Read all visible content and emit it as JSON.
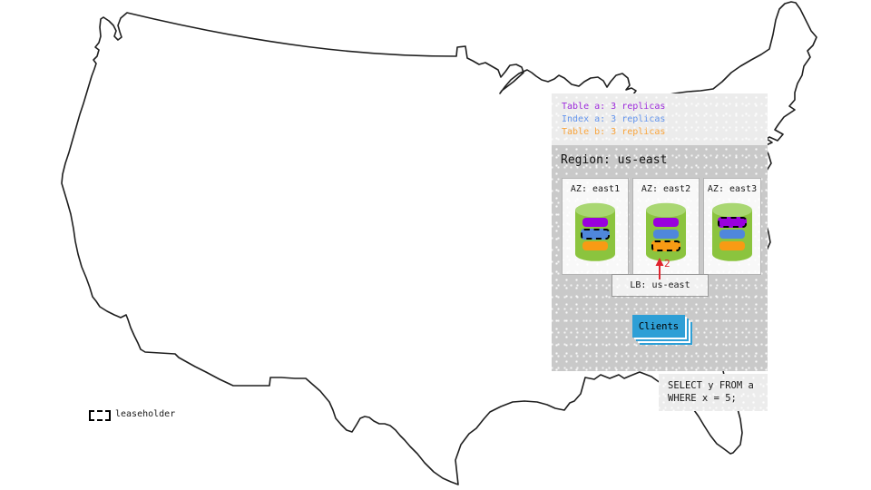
{
  "legend": {
    "items": [
      {
        "label": "Table a: 3 replicas",
        "color": "#9d2bdb"
      },
      {
        "label": "Index a: 3 replicas",
        "color": "#6495ed"
      },
      {
        "label": "Table b: 3 replicas",
        "color": "#f9a43b"
      }
    ]
  },
  "region": {
    "title": "Region: us-east",
    "azs": [
      {
        "label": "AZ: east1",
        "replicas": [
          {
            "name": "table-a",
            "color": "#9900dd",
            "leaseholder": false
          },
          {
            "name": "index-a",
            "color": "#4f87dc",
            "leaseholder": true
          },
          {
            "name": "table-b",
            "color": "#f89b14",
            "leaseholder": false
          }
        ]
      },
      {
        "label": "AZ: east2",
        "replicas": [
          {
            "name": "table-a",
            "color": "#9900dd",
            "leaseholder": false
          },
          {
            "name": "index-a",
            "color": "#4f87dc",
            "leaseholder": false
          },
          {
            "name": "table-b",
            "color": "#f89b14",
            "leaseholder": true
          }
        ]
      },
      {
        "label": "AZ: east3",
        "replicas": [
          {
            "name": "table-a",
            "color": "#9900dd",
            "leaseholder": true
          },
          {
            "name": "index-a",
            "color": "#4f87dc",
            "leaseholder": false
          },
          {
            "name": "table-b",
            "color": "#f89b14",
            "leaseholder": false
          }
        ]
      }
    ],
    "load_balancer": {
      "label": "LB: us-east"
    },
    "clients": {
      "label": "Clients",
      "color": "#2e9fd6"
    },
    "annotation": {
      "label": "2",
      "color": "#e0232d"
    }
  },
  "query": {
    "text": "SELECT y FROM a\nWHERE x = 5;"
  },
  "map_key": {
    "leaseholder_label": "leaseholder"
  },
  "colors": {
    "cylinder_body": "#8bc43e",
    "cylinder_top": "#a9d772",
    "legend_panel": "#ececec",
    "region_panel": "#c9c9c9",
    "map_outline": "#1f1f1f"
  }
}
